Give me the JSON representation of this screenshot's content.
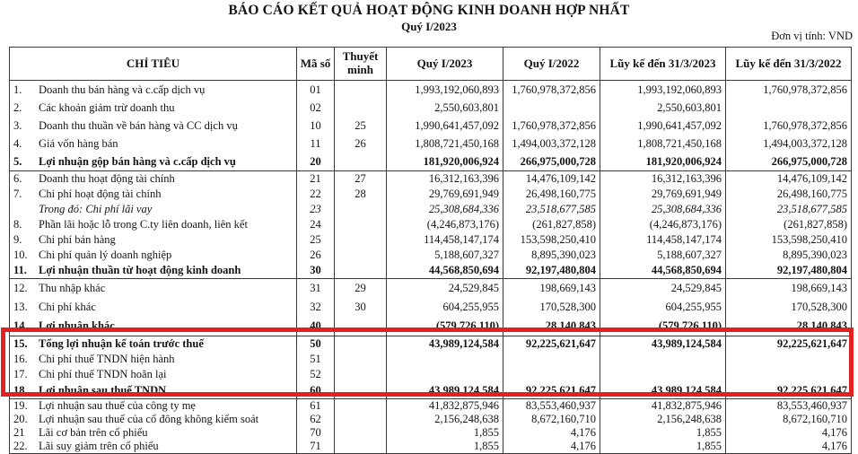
{
  "header": {
    "title": "BÁO CÁO KẾT QUẢ HOẠT ĐỘNG KINH DOANH HỢP NHẤT",
    "subtitle": "Quý I/2023",
    "unit_note": "Đơn vị tính: VND"
  },
  "highlight": {
    "color": "#e02222",
    "covers_rows": "15-18"
  },
  "table": {
    "columns": [
      "CHỈ TIÊU",
      "Mã số",
      "Thuyết minh",
      "Quý I/2023",
      "Quý I/2022",
      "Lũy kế đến 31/3/2023",
      "Lũy kế đến 31/3/2022"
    ],
    "groups": [
      {
        "rows": [
          {
            "no": "1.",
            "label": "Doanh thu bán hàng và c.cấp dịch vụ",
            "code": "01",
            "note": "",
            "q1_2023": "1,993,192,060,893",
            "q1_2022": "1,760,978,372,856",
            "ytd_2023": "1,993,192,060,893",
            "ytd_2022": "1,760,978,372,856"
          },
          {
            "no": "2.",
            "label": "Các khoản giảm trừ doanh thu",
            "code": "02",
            "note": "",
            "q1_2023": "2,550,603,801",
            "q1_2022": "",
            "ytd_2023": "2,550,603,801",
            "ytd_2022": ""
          },
          {
            "no": "3.",
            "label": "Doanh thu thuần về bán hàng và CC dịch vụ",
            "code": "10",
            "note": "25",
            "q1_2023": "1,990,641,457,092",
            "q1_2022": "1,760,978,372,856",
            "ytd_2023": "1,990,641,457,092",
            "ytd_2022": "1,760,978,372,856"
          },
          {
            "no": "4.",
            "label": "Giá vốn hàng bán",
            "code": "11",
            "note": "26",
            "q1_2023": "1,808,721,450,168",
            "q1_2022": "1,494,003,372,128",
            "ytd_2023": "1,808,721,450,168",
            "ytd_2022": "1,494,003,372,128"
          },
          {
            "no": "5.",
            "label": "Lợi nhuận gộp bán hàng và c.cấp dịch vụ",
            "code": "20",
            "note": "",
            "style": "bold",
            "q1_2023": "181,920,006,924",
            "q1_2022": "266,975,000,728",
            "ytd_2023": "181,920,006,924",
            "ytd_2022": "266,975,000,728"
          }
        ]
      },
      {
        "rows": [
          {
            "no": "6.",
            "label": "Doanh thu hoạt động tài chính",
            "code": "21",
            "note": "27",
            "q1_2023": "16,312,163,396",
            "q1_2022": "14,476,109,142",
            "ytd_2023": "16,312,163,396",
            "ytd_2022": "14,476,109,142"
          },
          {
            "no": "7.",
            "label": "Chi phí hoạt động tài chính",
            "code": "22",
            "note": "28",
            "q1_2023": "29,769,691,949",
            "q1_2022": "26,498,160,775",
            "ytd_2023": "29,769,691,949",
            "ytd_2022": "26,498,160,775"
          },
          {
            "no": "",
            "label": "Trong đó: Chi phí lãi vay",
            "code": "23",
            "note": "",
            "style": "italic",
            "q1_2023": "25,308,684,336",
            "q1_2022": "23,518,677,585",
            "ytd_2023": "25,308,684,336",
            "ytd_2022": "23,518,677,585"
          },
          {
            "no": "8.",
            "label": "Phần lãi hoặc lỗ trong C.ty liên doanh, liên kết",
            "code": "24",
            "note": "",
            "q1_2023": "(4,246,873,176)",
            "q1_2022": "(261,827,858)",
            "ytd_2023": "(4,246,873,176)",
            "ytd_2022": "(261,827,858)"
          },
          {
            "no": "9.",
            "label": "Chi phí bán hàng",
            "code": "25",
            "note": "",
            "q1_2023": "114,458,147,174",
            "q1_2022": "153,598,250,410",
            "ytd_2023": "114,458,147,174",
            "ytd_2022": "153,598,250,410"
          },
          {
            "no": "10.",
            "label": "Chi phí quản lý doanh nghiệp",
            "code": "26",
            "note": "",
            "q1_2023": "5,188,607,327",
            "q1_2022": "8,895,390,023",
            "ytd_2023": "5,188,607,327",
            "ytd_2022": "8,895,390,023"
          },
          {
            "no": "11.",
            "label": "Lợi nhuận thuần từ hoạt động kinh doanh",
            "code": "30",
            "note": "",
            "style": "bold",
            "q1_2023": "44,568,850,694",
            "q1_2022": "92,197,480,804",
            "ytd_2023": "44,568,850,694",
            "ytd_2022": "92,197,480,804"
          }
        ]
      },
      {
        "rows": [
          {
            "no": "12.",
            "label": "Thu nhập khác",
            "code": "31",
            "note": "29",
            "q1_2023": "24,529,845",
            "q1_2022": "198,669,143",
            "ytd_2023": "24,529,845",
            "ytd_2022": "198,669,143"
          },
          {
            "no": "13.",
            "label": "Chi phí khác",
            "code": "32",
            "note": "30",
            "q1_2023": "604,255,955",
            "q1_2022": "170,528,300",
            "ytd_2023": "604,255,955",
            "ytd_2022": "170,528,300"
          },
          {
            "no": "14.",
            "label": "Lợi nhuận khác",
            "code": "40",
            "note": "",
            "style": "bold",
            "q1_2023": "(579,726,110)",
            "q1_2022": "28,140,843",
            "ytd_2023": "(579,726,110)",
            "ytd_2022": "28,140,843"
          }
        ]
      },
      {
        "rows": [
          {
            "no": "15.",
            "label": "Tổng lợi nhuận kế toán trước thuế",
            "code": "50",
            "note": "",
            "style": "bold",
            "q1_2023": "43,989,124,584",
            "q1_2022": "92,225,621,647",
            "ytd_2023": "43,989,124,584",
            "ytd_2022": "92,225,621,647"
          },
          {
            "no": "16.",
            "label": "Chi phí thuế TNDN hiện hành",
            "code": "51",
            "note": "",
            "q1_2023": "",
            "q1_2022": "",
            "ytd_2023": "",
            "ytd_2022": ""
          },
          {
            "no": "17.",
            "label": "Chi phí thuế TNDN hoãn lại",
            "code": "52",
            "note": "",
            "q1_2023": "",
            "q1_2022": "",
            "ytd_2023": "",
            "ytd_2022": ""
          },
          {
            "no": "18.",
            "label": "Lợi nhuận sau thuế TNDN",
            "code": "60",
            "note": "",
            "style": "bold",
            "q1_2023": "43,989,124,584",
            "q1_2022": "92,225,621,647",
            "ytd_2023": "43,989,124,584",
            "ytd_2022": "92,225,621,647"
          }
        ]
      },
      {
        "rows": [
          {
            "no": "19.",
            "label": "Lợi nhuận sau thuế của công ty mẹ",
            "code": "61",
            "note": "",
            "q1_2023": "41,832,875,946",
            "q1_2022": "83,553,460,937",
            "ytd_2023": "41,832,875,946",
            "ytd_2022": "83,553,460,937"
          },
          {
            "no": "20.",
            "label": "Lợi nhuận sau thuế của cổ đông không kiểm soát",
            "code": "62",
            "note": "",
            "q1_2023": "2,156,248,638",
            "q1_2022": "8,672,160,710",
            "ytd_2023": "2,156,248,638",
            "ytd_2022": "8,672,160,710"
          },
          {
            "no": "21",
            "label": "Lãi cơ bản trên cổ phiếu",
            "code": "70",
            "note": "",
            "q1_2023": "1,855",
            "q1_2022": "4,176",
            "ytd_2023": "1,855",
            "ytd_2022": "4,176"
          },
          {
            "no": "22.",
            "label": "Lãi suy giảm trên cổ phiếu",
            "code": "71",
            "note": "",
            "q1_2023": "1,855",
            "q1_2022": "4,176",
            "ytd_2023": "1,855",
            "ytd_2022": "4,176"
          }
        ]
      }
    ]
  }
}
